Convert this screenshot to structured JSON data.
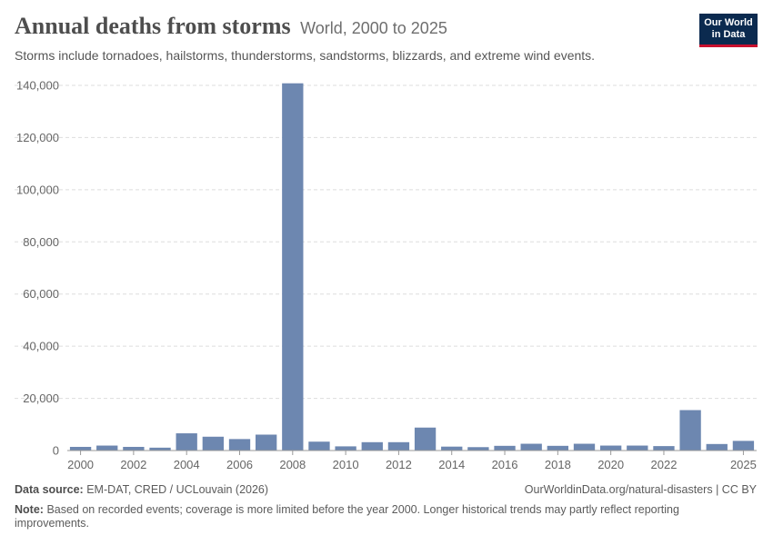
{
  "header": {
    "title": "Annual deaths from storms",
    "subtitle_inline": "World, 2000 to 2025",
    "subtitle": "Storms include tornadoes, hailstorms, thunderstorms, sandstorms, blizzards, and extreme wind events."
  },
  "logo": {
    "line1": "Our World",
    "line2": "in Data"
  },
  "footer": {
    "source_label": "Data source:",
    "source_text": "EM-DAT, CRED / UCLouvain (2026)",
    "url": "OurWorldinData.org/natural-disasters | CC BY",
    "note_label": "Note:",
    "note_text": "Based on recorded events; coverage is more limited before the year 2000. Longer historical trends may partly reflect reporting improvements."
  },
  "chart_data": {
    "type": "bar",
    "categories": [
      2000,
      2001,
      2002,
      2003,
      2004,
      2005,
      2006,
      2007,
      2008,
      2009,
      2010,
      2011,
      2012,
      2013,
      2014,
      2015,
      2016,
      2017,
      2018,
      2019,
      2020,
      2021,
      2022,
      2023,
      2024,
      2025
    ],
    "values": [
      1400,
      1900,
      1400,
      1100,
      6600,
      5300,
      4400,
      6100,
      140800,
      3400,
      1600,
      3200,
      3200,
      8800,
      1500,
      1300,
      1800,
      2600,
      1800,
      2600,
      1900,
      1900,
      1700,
      15500,
      2500,
      3700
    ],
    "x_tick_labels": [
      "2000",
      "2002",
      "2004",
      "2006",
      "2008",
      "2010",
      "2012",
      "2014",
      "2016",
      "2018",
      "2020",
      "2022",
      "2025"
    ],
    "y_ticks": [
      0,
      20000,
      40000,
      60000,
      80000,
      100000,
      120000,
      140000
    ],
    "y_tick_labels": [
      "0",
      "20,000",
      "40,000",
      "60,000",
      "80,000",
      "100,000",
      "120,000",
      "140,000"
    ],
    "ylim": [
      0,
      140000
    ],
    "grid": true,
    "bar_color": "#6d87b0"
  }
}
